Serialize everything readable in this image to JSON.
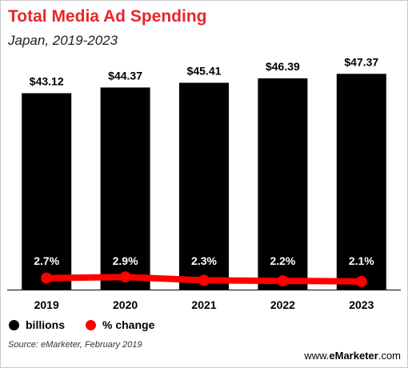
{
  "header": {
    "title": "Total Media Ad Spending",
    "subtitle": "Japan, 2019-2023"
  },
  "legend": [
    {
      "label": "billions",
      "color": "#000000"
    },
    {
      "label": "% change",
      "color": "#ff0000"
    }
  ],
  "footer": {
    "source": "Source: eMarketer, February 2019",
    "brand_prefix": "www.",
    "brand_name": "eMarketer",
    "brand_suffix": ".com"
  },
  "colors": {
    "title": "#e8262b",
    "bars": "#000000",
    "line": "#ff0000"
  },
  "chart_data": {
    "type": "bar",
    "categories": [
      "2019",
      "2020",
      "2021",
      "2022",
      "2023"
    ],
    "series": [
      {
        "name": "billions",
        "values": [
          43.12,
          44.37,
          45.41,
          46.39,
          47.37
        ],
        "labels": [
          "$43.12",
          "$44.37",
          "$45.41",
          "$46.39",
          "$47.37"
        ]
      },
      {
        "name": "% change",
        "type": "line",
        "values": [
          2.7,
          2.9,
          2.3,
          2.2,
          2.1
        ],
        "labels": [
          "2.7%",
          "2.9%",
          "2.3%",
          "2.2%",
          "2.1%"
        ]
      }
    ],
    "legend_position": "bottom-left",
    "grid": false
  }
}
